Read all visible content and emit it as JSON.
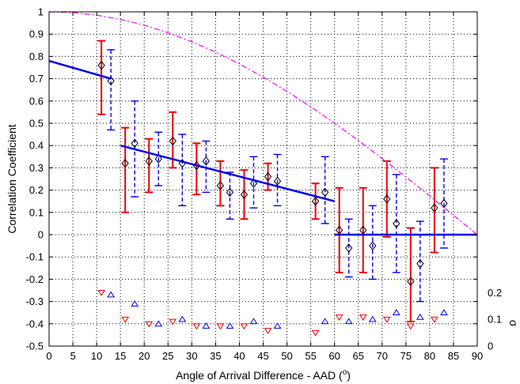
{
  "chart_data": {
    "type": "scatter",
    "xlabel": "Angle of Arrival Difference - AAD (",
    "xlabel_sup": "o",
    "xlabel_tail": ")",
    "ylabel": "Correlation Coefficient",
    "y2label": "σ",
    "xlim": [
      0,
      90
    ],
    "ylim": [
      -0.5,
      1
    ],
    "y2lim": [
      0,
      0.25
    ],
    "grid": true,
    "x_ticks": [
      "0",
      "5",
      "10",
      "15",
      "20",
      "25",
      "30",
      "35",
      "40",
      "45",
      "50",
      "55",
      "60",
      "65",
      "70",
      "75",
      "80",
      "85",
      "90"
    ],
    "y_ticks": [
      "-0.5",
      "-0.4",
      "-0.3",
      "-0.2",
      "-0.1",
      "0",
      "0.1",
      "0.2",
      "0.3",
      "0.4",
      "0.5",
      "0.6",
      "0.7",
      "0.8",
      "0.9",
      "1"
    ],
    "y2_ticks": [
      "0",
      "0.1",
      "0.2"
    ],
    "colors": {
      "red": "#e8000b",
      "blue": "#0000e6",
      "black": "#000000",
      "magenta": "#ff00ff"
    },
    "series": [
      {
        "style": "red-errorbar-diamond",
        "x": [
          11,
          16,
          21,
          26,
          31,
          36,
          41,
          46,
          56,
          61,
          66,
          71,
          76,
          81
        ],
        "y": [
          0.76,
          0.32,
          0.33,
          0.42,
          0.31,
          0.22,
          0.18,
          0.26,
          0.15,
          0.02,
          0.02,
          0.16,
          -0.21,
          0.12
        ],
        "lower": [
          0.54,
          0.1,
          0.19,
          0.3,
          0.18,
          0.13,
          0.07,
          0.2,
          0.07,
          -0.17,
          -0.17,
          -0.01,
          -0.39,
          -0.08
        ],
        "upper": [
          0.87,
          0.48,
          0.43,
          0.55,
          0.41,
          0.33,
          0.29,
          0.32,
          0.23,
          0.21,
          0.21,
          0.33,
          0.03,
          0.3
        ]
      },
      {
        "style": "blue-dashed-errorbar-diamond",
        "x": [
          13,
          18,
          23,
          28,
          33,
          38,
          43,
          48,
          58,
          63,
          68,
          73,
          78,
          83
        ],
        "y": [
          0.69,
          0.41,
          0.34,
          0.32,
          0.33,
          0.19,
          0.23,
          0.24,
          0.19,
          -0.06,
          -0.05,
          0.05,
          -0.13,
          0.14
        ],
        "lower": [
          0.47,
          0.17,
          0.22,
          0.13,
          0.19,
          0.07,
          0.12,
          0.13,
          0.05,
          -0.19,
          -0.2,
          -0.17,
          -0.3,
          -0.06
        ],
        "upper": [
          0.83,
          0.6,
          0.46,
          0.45,
          0.42,
          0.28,
          0.35,
          0.36,
          0.35,
          0.07,
          0.13,
          0.27,
          0.06,
          0.34
        ]
      },
      {
        "style": "blue-fit-line",
        "segments": [
          [
            [
              0,
              0.78
            ],
            [
              13,
              0.7
            ]
          ],
          [
            [
              15,
              0.4
            ],
            [
              60,
              0.15
            ]
          ],
          [
            [
              60,
              0.0
            ],
            [
              90,
              0.0
            ]
          ]
        ]
      },
      {
        "style": "magenta-dash-dot-curve",
        "x": [
          5,
          10,
          15,
          20,
          25,
          30,
          35,
          40,
          45,
          50,
          55,
          60,
          65,
          70,
          75,
          80,
          85,
          90
        ],
        "y": [
          0.997,
          0.985,
          0.966,
          0.94,
          0.906,
          0.866,
          0.819,
          0.766,
          0.707,
          0.643,
          0.574,
          0.5,
          0.423,
          0.342,
          0.259,
          0.174,
          0.087,
          0.0
        ]
      },
      {
        "style": "red-down-triangle",
        "axis": "y2",
        "x": [
          11,
          16,
          21,
          26,
          31,
          36,
          41,
          46,
          56,
          61,
          66,
          71,
          76,
          81
        ],
        "y": [
          0.2,
          0.1,
          0.083,
          0.092,
          0.075,
          0.075,
          0.075,
          0.058,
          0.05,
          0.108,
          0.108,
          0.1,
          0.075,
          0.1
        ]
      },
      {
        "style": "blue-up-triangle",
        "axis": "y2",
        "x": [
          13,
          18,
          23,
          28,
          33,
          38,
          43,
          48,
          58,
          63,
          68,
          73,
          78,
          83
        ],
        "y": [
          0.192,
          0.158,
          0.083,
          0.1,
          0.075,
          0.075,
          0.092,
          0.075,
          0.092,
          0.092,
          0.1,
          0.125,
          0.108,
          0.125
        ]
      }
    ]
  }
}
